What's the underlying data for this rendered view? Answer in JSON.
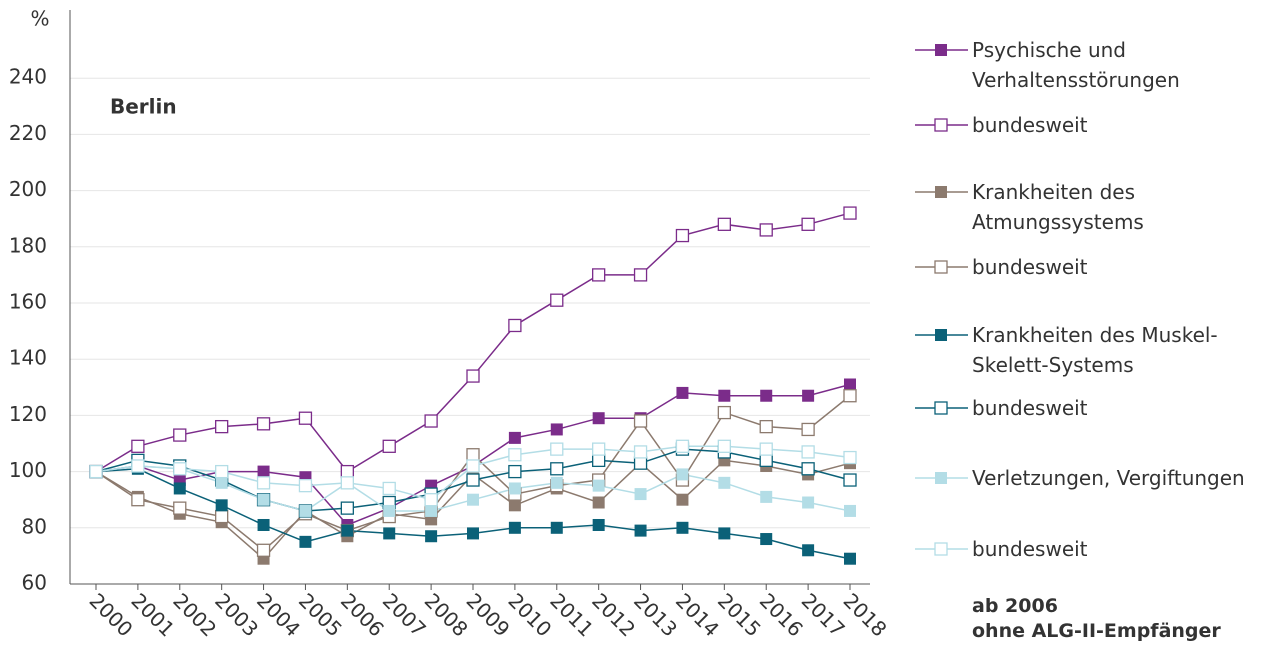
{
  "chart_data": {
    "type": "line",
    "y_label": "%",
    "annotation": "Berlin",
    "note": [
      "ab 2006",
      "ohne ALG-II-Empfänger"
    ],
    "categories": [
      "2000",
      "2001",
      "2002",
      "2003",
      "2004",
      "2005",
      "2006",
      "2007",
      "2008",
      "2009",
      "2010",
      "2011",
      "2012",
      "2013",
      "2014",
      "2015",
      "2016",
      "2017",
      "2018"
    ],
    "ylim": [
      60,
      260
    ],
    "yticks": [
      60,
      80,
      100,
      120,
      140,
      160,
      180,
      200,
      220,
      240
    ],
    "grid": true,
    "series": [
      {
        "name": "Psychische und Verhaltensstörungen",
        "color": "#7b2c8a",
        "marker": "filled",
        "values": [
          100,
          102,
          97,
          100,
          100,
          98,
          81,
          87,
          95,
          102,
          112,
          115,
          119,
          119,
          128,
          127,
          127,
          127,
          131
        ]
      },
      {
        "name": "bundesweit",
        "color": "#7b2c8a",
        "marker": "hollow",
        "values": [
          100,
          109,
          113,
          116,
          117,
          119,
          100,
          109,
          118,
          134,
          152,
          161,
          170,
          170,
          184,
          188,
          186,
          188,
          192
        ]
      },
      {
        "name": "Krankheiten des Atmungssystems",
        "color": "#8c7a6e",
        "marker": "filled",
        "values": [
          100,
          91,
          85,
          82,
          69,
          86,
          77,
          85,
          83,
          99,
          88,
          94,
          89,
          103,
          90,
          104,
          102,
          99,
          103
        ]
      },
      {
        "name": "bundesweit",
        "color": "#8c7a6e",
        "marker": "hollow",
        "values": [
          100,
          90,
          87,
          84,
          72,
          85,
          79,
          84,
          86,
          106,
          92,
          95,
          97,
          118,
          97,
          121,
          116,
          115,
          127
        ]
      },
      {
        "name": "Krankheiten des Muskel-Skelett-Systems",
        "color": "#0b6178",
        "marker": "filled",
        "values": [
          100,
          101,
          94,
          88,
          81,
          75,
          79,
          78,
          77,
          78,
          80,
          80,
          81,
          79,
          80,
          78,
          76,
          72,
          69
        ]
      },
      {
        "name": "bundesweit",
        "color": "#0b6178",
        "marker": "hollow",
        "values": [
          100,
          104,
          102,
          97,
          90,
          86,
          87,
          89,
          92,
          97,
          100,
          101,
          104,
          103,
          108,
          107,
          104,
          101,
          97
        ]
      },
      {
        "name": "Verletzungen, Vergiftungen",
        "color": "#b3dde6",
        "marker": "filled",
        "values": [
          100,
          102,
          101,
          96,
          90,
          86,
          96,
          86,
          86,
          90,
          94,
          96,
          95,
          92,
          99,
          96,
          91,
          89,
          86
        ]
      },
      {
        "name": "bundesweit",
        "color": "#b3dde6",
        "marker": "hollow",
        "values": [
          100,
          102,
          101,
          100,
          96,
          95,
          96,
          94,
          90,
          102,
          106,
          108,
          108,
          107,
          109,
          109,
          108,
          107,
          105
        ]
      }
    ]
  }
}
